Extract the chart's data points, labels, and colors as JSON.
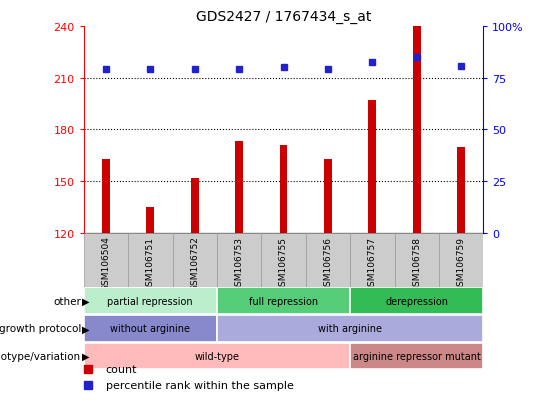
{
  "title": "GDS2427 / 1767434_s_at",
  "samples": [
    "GSM106504",
    "GSM106751",
    "GSM106752",
    "GSM106753",
    "GSM106755",
    "GSM106756",
    "GSM106757",
    "GSM106758",
    "GSM106759"
  ],
  "bar_values": [
    163,
    135,
    152,
    173,
    171,
    163,
    197,
    240,
    170
  ],
  "dot_values": [
    215,
    215,
    215,
    215,
    216,
    215,
    219,
    222,
    217
  ],
  "ylim_left": [
    120,
    240
  ],
  "ylim_right": [
    0,
    100
  ],
  "yticks_left": [
    120,
    150,
    180,
    210,
    240
  ],
  "yticks_right": [
    0,
    25,
    50,
    75,
    100
  ],
  "ytick_right_labels": [
    "0",
    "25",
    "50",
    "75",
    "100%"
  ],
  "bar_color": "#cc0000",
  "dot_color": "#2222cc",
  "annotation_rows": [
    {
      "label": "other",
      "segments": [
        {
          "text": "partial repression",
          "start": 0,
          "end": 3,
          "color": "#bbeecc"
        },
        {
          "text": "full repression",
          "start": 3,
          "end": 6,
          "color": "#55cc77"
        },
        {
          "text": "derepression",
          "start": 6,
          "end": 9,
          "color": "#33bb55"
        }
      ]
    },
    {
      "label": "growth protocol",
      "segments": [
        {
          "text": "without arginine",
          "start": 0,
          "end": 3,
          "color": "#8888cc"
        },
        {
          "text": "with arginine",
          "start": 3,
          "end": 9,
          "color": "#aaaadd"
        }
      ]
    },
    {
      "label": "genotype/variation",
      "segments": [
        {
          "text": "wild-type",
          "start": 0,
          "end": 6,
          "color": "#ffbbbb"
        },
        {
          "text": "arginine repressor mutant",
          "start": 6,
          "end": 9,
          "color": "#cc8888"
        }
      ]
    }
  ],
  "legend_items": [
    {
      "label": "count",
      "color": "#cc0000",
      "marker": "s"
    },
    {
      "label": "percentile rank within the sample",
      "color": "#2222cc",
      "marker": "s"
    }
  ],
  "bg_color": "white",
  "grid_color": "black",
  "sample_box_color": "#cccccc",
  "sample_box_edge_color": "#999999"
}
